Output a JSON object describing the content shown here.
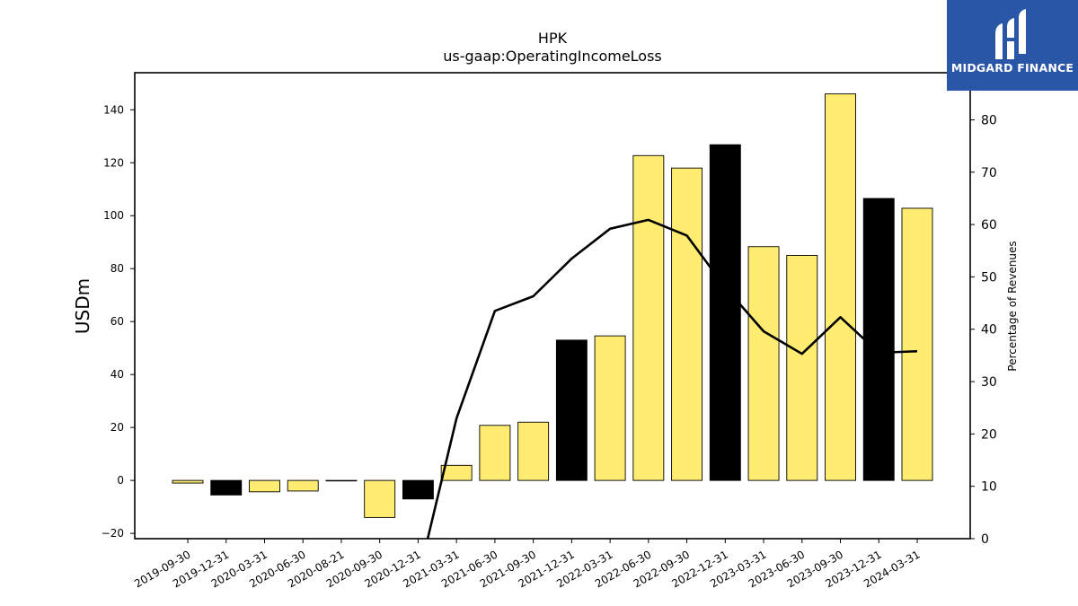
{
  "logo": {
    "text": "MIDGARD FINANCE"
  },
  "chart_data": {
    "type": "bar",
    "title": "HPK",
    "subtitle": "us-gaap:OperatingIncomeLoss",
    "ylabel": "USDm",
    "ylabel_right": "Percentage of Revenues",
    "categories": [
      "2019-09-30",
      "2019-12-31",
      "2020-03-31",
      "2020-06-30",
      "2020-08-21",
      "2020-09-30",
      "2020-12-31",
      "2021-03-31",
      "2021-06-30",
      "2021-09-30",
      "2021-12-31",
      "2022-03-31",
      "2022-06-30",
      "2022-09-30",
      "2022-12-31",
      "2023-03-31",
      "2023-06-30",
      "2023-09-30",
      "2023-12-31",
      "2024-03-31"
    ],
    "values": [
      -1,
      -5.5,
      -4.3,
      -4,
      0,
      -14,
      -7,
      5.7,
      20.8,
      22,
      53,
      54.6,
      122.7,
      118,
      126.8,
      88.3,
      85,
      146,
      106.5,
      102.8
    ],
    "bar_colors": [
      "#ffec70",
      "#000000",
      "#ffec70",
      "#ffec70",
      "#ffec70",
      "#ffec70",
      "#000000",
      "#ffec70",
      "#ffec70",
      "#ffec70",
      "#000000",
      "#ffec70",
      "#ffec70",
      "#ffec70",
      "#000000",
      "#ffec70",
      "#ffec70",
      "#ffec70",
      "#000000",
      "#ffec70"
    ],
    "ylim": [
      -22,
      154
    ],
    "yticks": [
      -20,
      0,
      20,
      40,
      60,
      80,
      100,
      120,
      140
    ],
    "right_series": {
      "name": "Percentage of Revenues",
      "values": [
        null,
        null,
        null,
        null,
        null,
        null,
        null,
        23,
        43.5,
        46.3,
        53.5,
        59.2,
        60.9,
        57.9,
        48,
        39.6,
        35.3,
        42.3,
        35.5,
        35.8
      ],
      "start_from_bottom": true
    },
    "ylim_right": [
      0,
      89
    ],
    "yticks_right": [
      0,
      10,
      20,
      30,
      40,
      50,
      60,
      70,
      80
    ],
    "colors": {
      "yellow": "#ffec70",
      "black": "#000000",
      "line": "#000000"
    },
    "grid": false
  }
}
